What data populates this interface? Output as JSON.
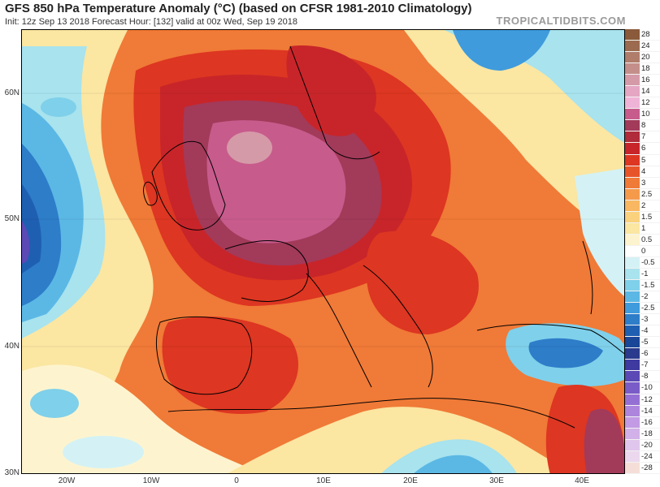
{
  "header": {
    "title": "GFS 850 hPa Temperature Anomaly (°C) (based on CFSR 1981-2010 Climatology)",
    "subtitle": "Init: 12z Sep 13 2018   Forecast Hour: [132]   valid at 00z Wed, Sep 19 2018",
    "brand": "TROPICALTIDBITS.COM"
  },
  "axes": {
    "y_labels": [
      "60N",
      "50N",
      "40N",
      "30N"
    ],
    "x_labels": [
      "20W",
      "10W",
      "0",
      "10E",
      "20E",
      "30E",
      "40E"
    ]
  },
  "legend": {
    "entries": [
      {
        "label": "28",
        "color": "#8a5a3a"
      },
      {
        "label": "24",
        "color": "#9c6b4f"
      },
      {
        "label": "20",
        "color": "#b07d6b"
      },
      {
        "label": "18",
        "color": "#c48f8a"
      },
      {
        "label": "16",
        "color": "#d59aa8"
      },
      {
        "label": "14",
        "color": "#e4a6c3"
      },
      {
        "label": "12",
        "color": "#f0b3d8"
      },
      {
        "label": "10",
        "color": "#c75b8c"
      },
      {
        "label": "8",
        "color": "#a23a5a"
      },
      {
        "label": "7",
        "color": "#b02c3a"
      },
      {
        "label": "6",
        "color": "#c8252a"
      },
      {
        "label": "5",
        "color": "#dd3622"
      },
      {
        "label": "4",
        "color": "#e8542a"
      },
      {
        "label": "3",
        "color": "#f07a37"
      },
      {
        "label": "2.5",
        "color": "#f59a4b"
      },
      {
        "label": "2",
        "color": "#f8b760"
      },
      {
        "label": "1.5",
        "color": "#fad27e"
      },
      {
        "label": "1",
        "color": "#fbe6a2"
      },
      {
        "label": "0.5",
        "color": "#fdf4cf"
      },
      {
        "label": "0",
        "color": "#ffffff"
      },
      {
        "label": "-0.5",
        "color": "#d4f2f5"
      },
      {
        "label": "-1",
        "color": "#a8e3ee"
      },
      {
        "label": "-1.5",
        "color": "#7fd0ea"
      },
      {
        "label": "-2",
        "color": "#5bb8e5"
      },
      {
        "label": "-2.5",
        "color": "#3f9bdc"
      },
      {
        "label": "-3",
        "color": "#2d7dc9"
      },
      {
        "label": "-4",
        "color": "#1f5fb2"
      },
      {
        "label": "-5",
        "color": "#1a4698"
      },
      {
        "label": "-6",
        "color": "#2a3a8c"
      },
      {
        "label": "-7",
        "color": "#3e3aa0"
      },
      {
        "label": "-8",
        "color": "#5b49b6"
      },
      {
        "label": "-10",
        "color": "#7a5cc8"
      },
      {
        "label": "-12",
        "color": "#9570d4"
      },
      {
        "label": "-14",
        "color": "#ad85dd"
      },
      {
        "label": "-16",
        "color": "#c29be4"
      },
      {
        "label": "-18",
        "color": "#d2b0e8"
      },
      {
        "label": "-20",
        "color": "#e0c6ec"
      },
      {
        "label": "-24",
        "color": "#ebd8ee"
      },
      {
        "label": "-28",
        "color": "#f6ded8"
      }
    ]
  }
}
